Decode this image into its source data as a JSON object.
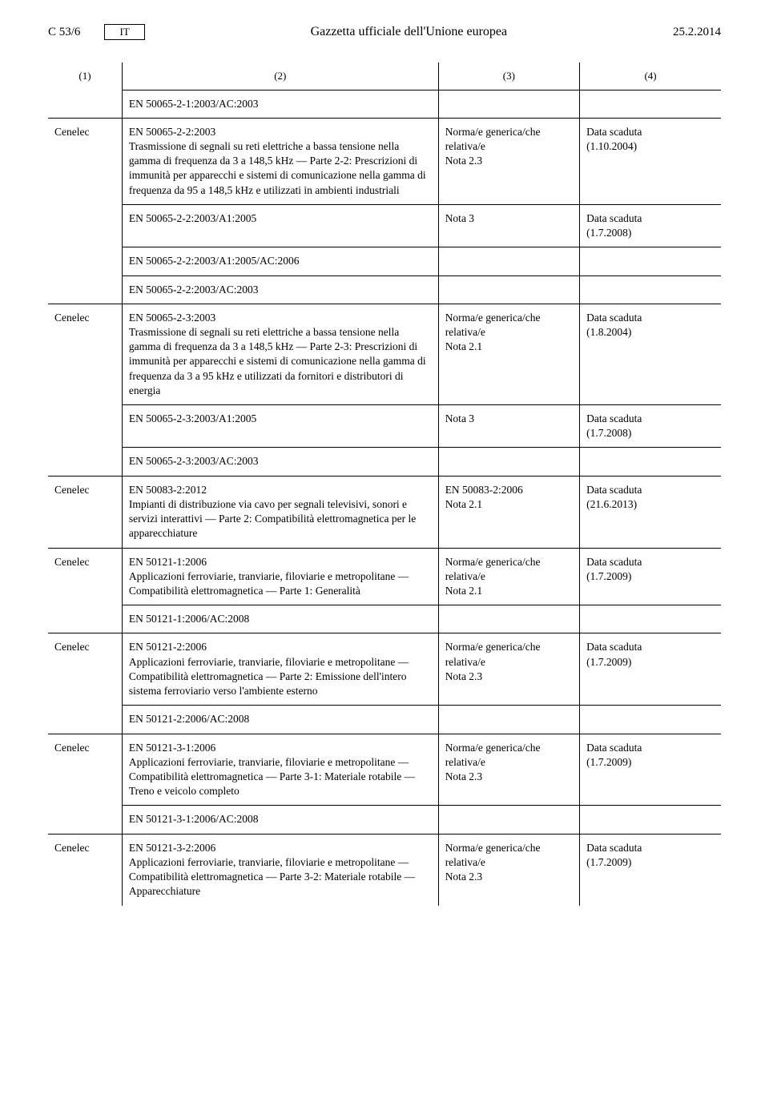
{
  "header": {
    "page_ref": "C 53/6",
    "lang": "IT",
    "journal_title": "Gazzetta ufficiale dell'Unione europea",
    "date": "25.2.2014"
  },
  "colheads": {
    "c1": "(1)",
    "c2": "(2)",
    "c3": "(3)",
    "c4": "(4)"
  },
  "rows": {
    "r0": {
      "c2": "EN 50065-2-1:2003/AC:2003"
    },
    "r1": {
      "c1": "Cenelec",
      "c2": "EN 50065-2-2:2003\nTrasmissione di segnali su reti elettriche a bassa tensione nella gamma di frequenza da 3 a 148,5 kHz — Parte 2-2: Prescrizioni di immunità per apparecchi e sistemi di comunicazione nella gamma di frequenza da 95 a 148,5 kHz e utilizzati in ambienti industriali",
      "c3": "Norma/e generica/che relativa/e\nNota 2.3",
      "c4": "Data scaduta\n(1.10.2004)"
    },
    "r2": {
      "c2": "EN 50065-2-2:2003/A1:2005",
      "c3": "Nota 3",
      "c4": "Data scaduta\n(1.7.2008)"
    },
    "r3": {
      "c2": "EN 50065-2-2:2003/A1:2005/AC:2006"
    },
    "r4": {
      "c2": "EN 50065-2-2:2003/AC:2003"
    },
    "r5": {
      "c1": "Cenelec",
      "c2": "EN 50065-2-3:2003\nTrasmissione di segnali su reti elettriche a bassa tensione nella gamma di frequenza da 3 a 148,5 kHz — Parte 2-3: Prescrizioni di immunità per apparecchi e sistemi di comunicazione nella gamma di frequenza da 3 a 95 kHz e utilizzati da fornitori e distributori di energia",
      "c3": "Norma/e generica/che relativa/e\nNota 2.1",
      "c4": "Data scaduta\n(1.8.2004)"
    },
    "r6": {
      "c2": "EN 50065-2-3:2003/A1:2005",
      "c3": "Nota 3",
      "c4": "Data scaduta\n(1.7.2008)"
    },
    "r7": {
      "c2": "EN 50065-2-3:2003/AC:2003"
    },
    "r8": {
      "c1": "Cenelec",
      "c2": "EN 50083-2:2012\nImpianti di distribuzione via cavo per segnali televisivi, sonori e servizi interattivi — Parte 2: Compatibilità elettromagnetica per le apparecchiature",
      "c3": "EN 50083-2:2006\nNota 2.1",
      "c4": "Data scaduta\n(21.6.2013)"
    },
    "r9": {
      "c1": "Cenelec",
      "c2": "EN 50121-1:2006\nApplicazioni ferroviarie, tranviarie, filoviarie e metropolitane — Compatibilità elettromagnetica — Parte 1: Generalità",
      "c3": "Norma/e generica/che relativa/e\nNota 2.1",
      "c4": "Data scaduta\n(1.7.2009)"
    },
    "r10": {
      "c2": "EN 50121-1:2006/AC:2008"
    },
    "r11": {
      "c1": "Cenelec",
      "c2": "EN 50121-2:2006\nApplicazioni ferroviarie, tranviarie, filoviarie e metropolitane — Compatibilità elettromagnetica — Parte 2: Emissione dell'intero sistema ferroviario verso l'ambiente esterno",
      "c3": "Norma/e generica/che relativa/e\nNota 2.3",
      "c4": "Data scaduta\n(1.7.2009)"
    },
    "r12": {
      "c2": "EN 50121-2:2006/AC:2008"
    },
    "r13": {
      "c1": "Cenelec",
      "c2": "EN 50121-3-1:2006\nApplicazioni ferroviarie, tranviarie, filoviarie e metropolitane — Compatibilità elettromagnetica — Parte 3-1: Materiale rotabile — Treno e veicolo completo",
      "c3": "Norma/e generica/che relativa/e\nNota 2.3",
      "c4": "Data scaduta\n(1.7.2009)"
    },
    "r14": {
      "c2": "EN 50121-3-1:2006/AC:2008"
    },
    "r15": {
      "c1": "Cenelec",
      "c2": "EN 50121-3-2:2006\nApplicazioni ferroviarie, tranviarie, filoviarie e metropolitane — Compatibilità elettromagnetica — Parte 3-2: Materiale rotabile — Apparecchiature",
      "c3": "Norma/e generica/che relativa/e\nNota 2.3",
      "c4": "Data scaduta\n(1.7.2009)"
    }
  }
}
